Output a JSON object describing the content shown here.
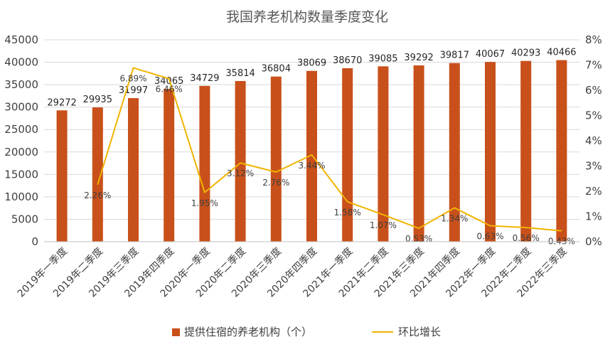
{
  "chart_data": {
    "type": "bar",
    "title": "我国养老机构数量季度变化",
    "categories": [
      "2019年一季度",
      "2019年二季度",
      "2019年三季度",
      "2019年四季度",
      "2020年一季度",
      "2020年二季度",
      "2020年三季度",
      "2020年四季度",
      "2021年一季度",
      "2021年二季度",
      "2021年三季度",
      "2021年四季度",
      "2022年一季度",
      "2022年二季度",
      "2022年三季度"
    ],
    "series": [
      {
        "name": "提供住宿的养老机构（个）",
        "kind": "bar",
        "axis": "left",
        "values": [
          29272,
          29935,
          31997,
          34065,
          34729,
          35814,
          36804,
          38069,
          38670,
          39085,
          39292,
          39817,
          40067,
          40293,
          40466
        ],
        "color": "#c8501a"
      },
      {
        "name": "环比增长",
        "kind": "line",
        "axis": "right",
        "values": [
          null,
          2.26,
          6.89,
          6.46,
          1.95,
          3.12,
          2.76,
          3.44,
          1.58,
          1.07,
          0.53,
          1.34,
          0.63,
          0.56,
          0.43
        ],
        "labels": [
          "",
          "2.26%",
          "6.89%",
          "6.46%",
          "1.95%",
          "3.12%",
          "2.76%",
          "3.44%",
          "1.58%",
          "1.07%",
          "0.53%",
          "1.34%",
          "0.63%",
          "0.56%",
          "0.43%"
        ],
        "color": "#f0b400"
      }
    ],
    "y_left": {
      "min": 0,
      "max": 45000,
      "ticks": [
        "0",
        "5000",
        "10000",
        "15000",
        "20000",
        "25000",
        "30000",
        "35000",
        "40000",
        "45000"
      ]
    },
    "y_right": {
      "min": 0,
      "max": 8,
      "ticks": [
        "0%",
        "1%",
        "2%",
        "3%",
        "4%",
        "5%",
        "6%",
        "7%",
        "8%"
      ]
    },
    "grid": true,
    "legend_position": "bottom"
  }
}
